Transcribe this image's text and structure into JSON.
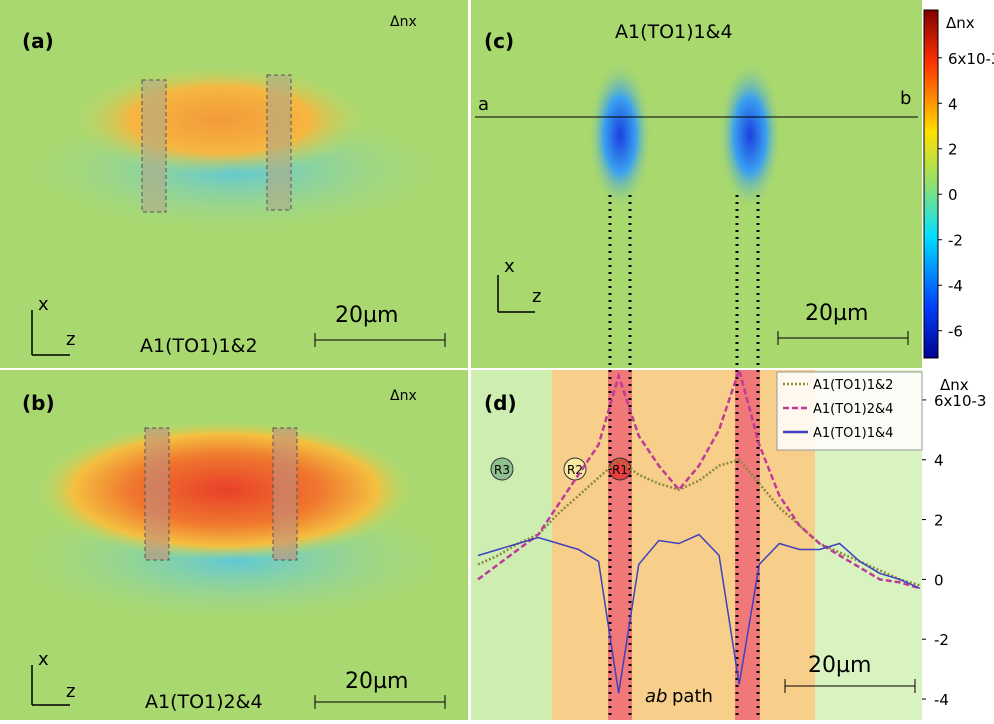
{
  "panels": [
    {
      "label": "(a)",
      "title": "A1(TO1)1&2",
      "quantity": "Δnx",
      "scale_bar": "20µm",
      "axis_x": "x",
      "axis_z": "z"
    },
    {
      "label": "(b)",
      "title": "A1(TO1)2&4",
      "quantity": "Δnx",
      "scale_bar": "20µm",
      "axis_x": "x",
      "axis_z": "z"
    },
    {
      "label": "(c)",
      "title": "A1(TO1)1&4",
      "scale_bar": "20µm",
      "axis_x": "x",
      "axis_z": "z",
      "line_start": "a",
      "line_end": "b"
    },
    {
      "label": "(d)",
      "regions": [
        "R3",
        "R2",
        "R1"
      ],
      "path_label_em": "ab",
      "path_label": "path",
      "scale_bar": "20µm"
    }
  ],
  "colorbar": {
    "label": "Δnx",
    "ticks": [
      {
        "value": 6,
        "label": "6x10-3"
      },
      4,
      2,
      0,
      -2,
      -4,
      -6
    ],
    "lim": [
      -7.2,
      8.1
    ]
  },
  "chart_data": {
    "type": "line",
    "ylabel": "Δnx",
    "ylim": [
      -4.7,
      7
    ],
    "yticks": [
      {
        "value": 6,
        "label": "6x10-3"
      },
      4,
      2,
      0,
      -2,
      -4
    ],
    "legend": "upper right",
    "series": [
      {
        "name": "A1(TO1)1&2",
        "color": "#8a8a3a",
        "style": "dotted",
        "values": [
          0.5,
          0.8,
          1.2,
          1.5,
          2.2,
          2.8,
          3.4,
          4.0,
          3.5,
          3.2,
          3.0,
          3.3,
          3.8,
          4.0,
          3.2,
          2.4,
          1.8,
          1.2,
          0.9,
          0.6,
          0.3,
          0.0,
          -0.2
        ]
      },
      {
        "name": "A1(TO1)2&4",
        "color": "#c03a9a",
        "style": "dashed",
        "values": [
          0,
          0.5,
          1.0,
          1.5,
          2.5,
          3.5,
          4.5,
          6.8,
          4.8,
          3.8,
          3.0,
          3.8,
          5.0,
          7.0,
          4.5,
          2.8,
          1.8,
          1.2,
          0.8,
          0.4,
          0.0,
          -0.1,
          -0.3
        ]
      },
      {
        "name": "A1(TO1)1&4",
        "color": "#4040c0",
        "style": "solid",
        "values": [
          0.8,
          1.0,
          1.2,
          1.4,
          1.2,
          1.0,
          0.6,
          -3.8,
          0.5,
          1.3,
          1.2,
          1.5,
          0.8,
          -3.5,
          0.5,
          1.2,
          1.0,
          1.0,
          1.2,
          0.6,
          0.2,
          0.0,
          -0.3
        ]
      }
    ]
  }
}
